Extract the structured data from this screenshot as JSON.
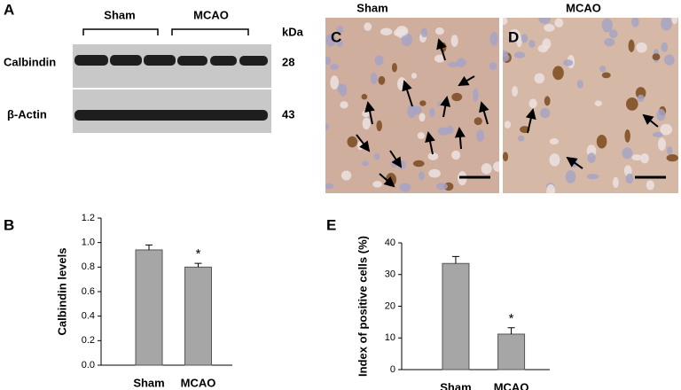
{
  "blot": {
    "panel": "A",
    "groups": [
      "Sham",
      "MCAO"
    ],
    "unit": "kDa",
    "rows": [
      {
        "label": "Calbindin",
        "kda": 28
      },
      {
        "label": "β-Actin",
        "kda": 43
      }
    ]
  },
  "micrographs": [
    {
      "panel": "C",
      "title": "Sham"
    },
    {
      "panel": "D",
      "title": "MCAO"
    }
  ],
  "chart_data": [
    {
      "type": "bar",
      "panel": "B",
      "ylabel": "Calbindin levels",
      "categories": [
        "Sham",
        "MCAO"
      ],
      "values": [
        0.94,
        0.8
      ],
      "errors": [
        0.04,
        0.03
      ],
      "color": "#a6a6a6",
      "annotations": [
        {
          "category": 1,
          "text": "*"
        }
      ],
      "ylim": [
        0,
        1.2
      ],
      "yticks": [
        {
          "value": 0,
          "label": "0.0"
        },
        0.2,
        0.4,
        0.6,
        0.8,
        {
          "value": 1,
          "label": "1.0"
        },
        1.2
      ]
    },
    {
      "type": "bar",
      "panel": "E",
      "ylabel": "Index of positive cells (%)",
      "categories": [
        "Sham",
        "MCAO"
      ],
      "values": [
        33.5,
        11.2
      ],
      "errors": [
        2.2,
        2.0
      ],
      "color": "#a6a6a6",
      "annotations": [
        {
          "category": 1,
          "text": "*"
        }
      ],
      "ylim": [
        0,
        40
      ],
      "yticks": [
        0,
        10,
        20,
        30,
        40
      ]
    }
  ]
}
